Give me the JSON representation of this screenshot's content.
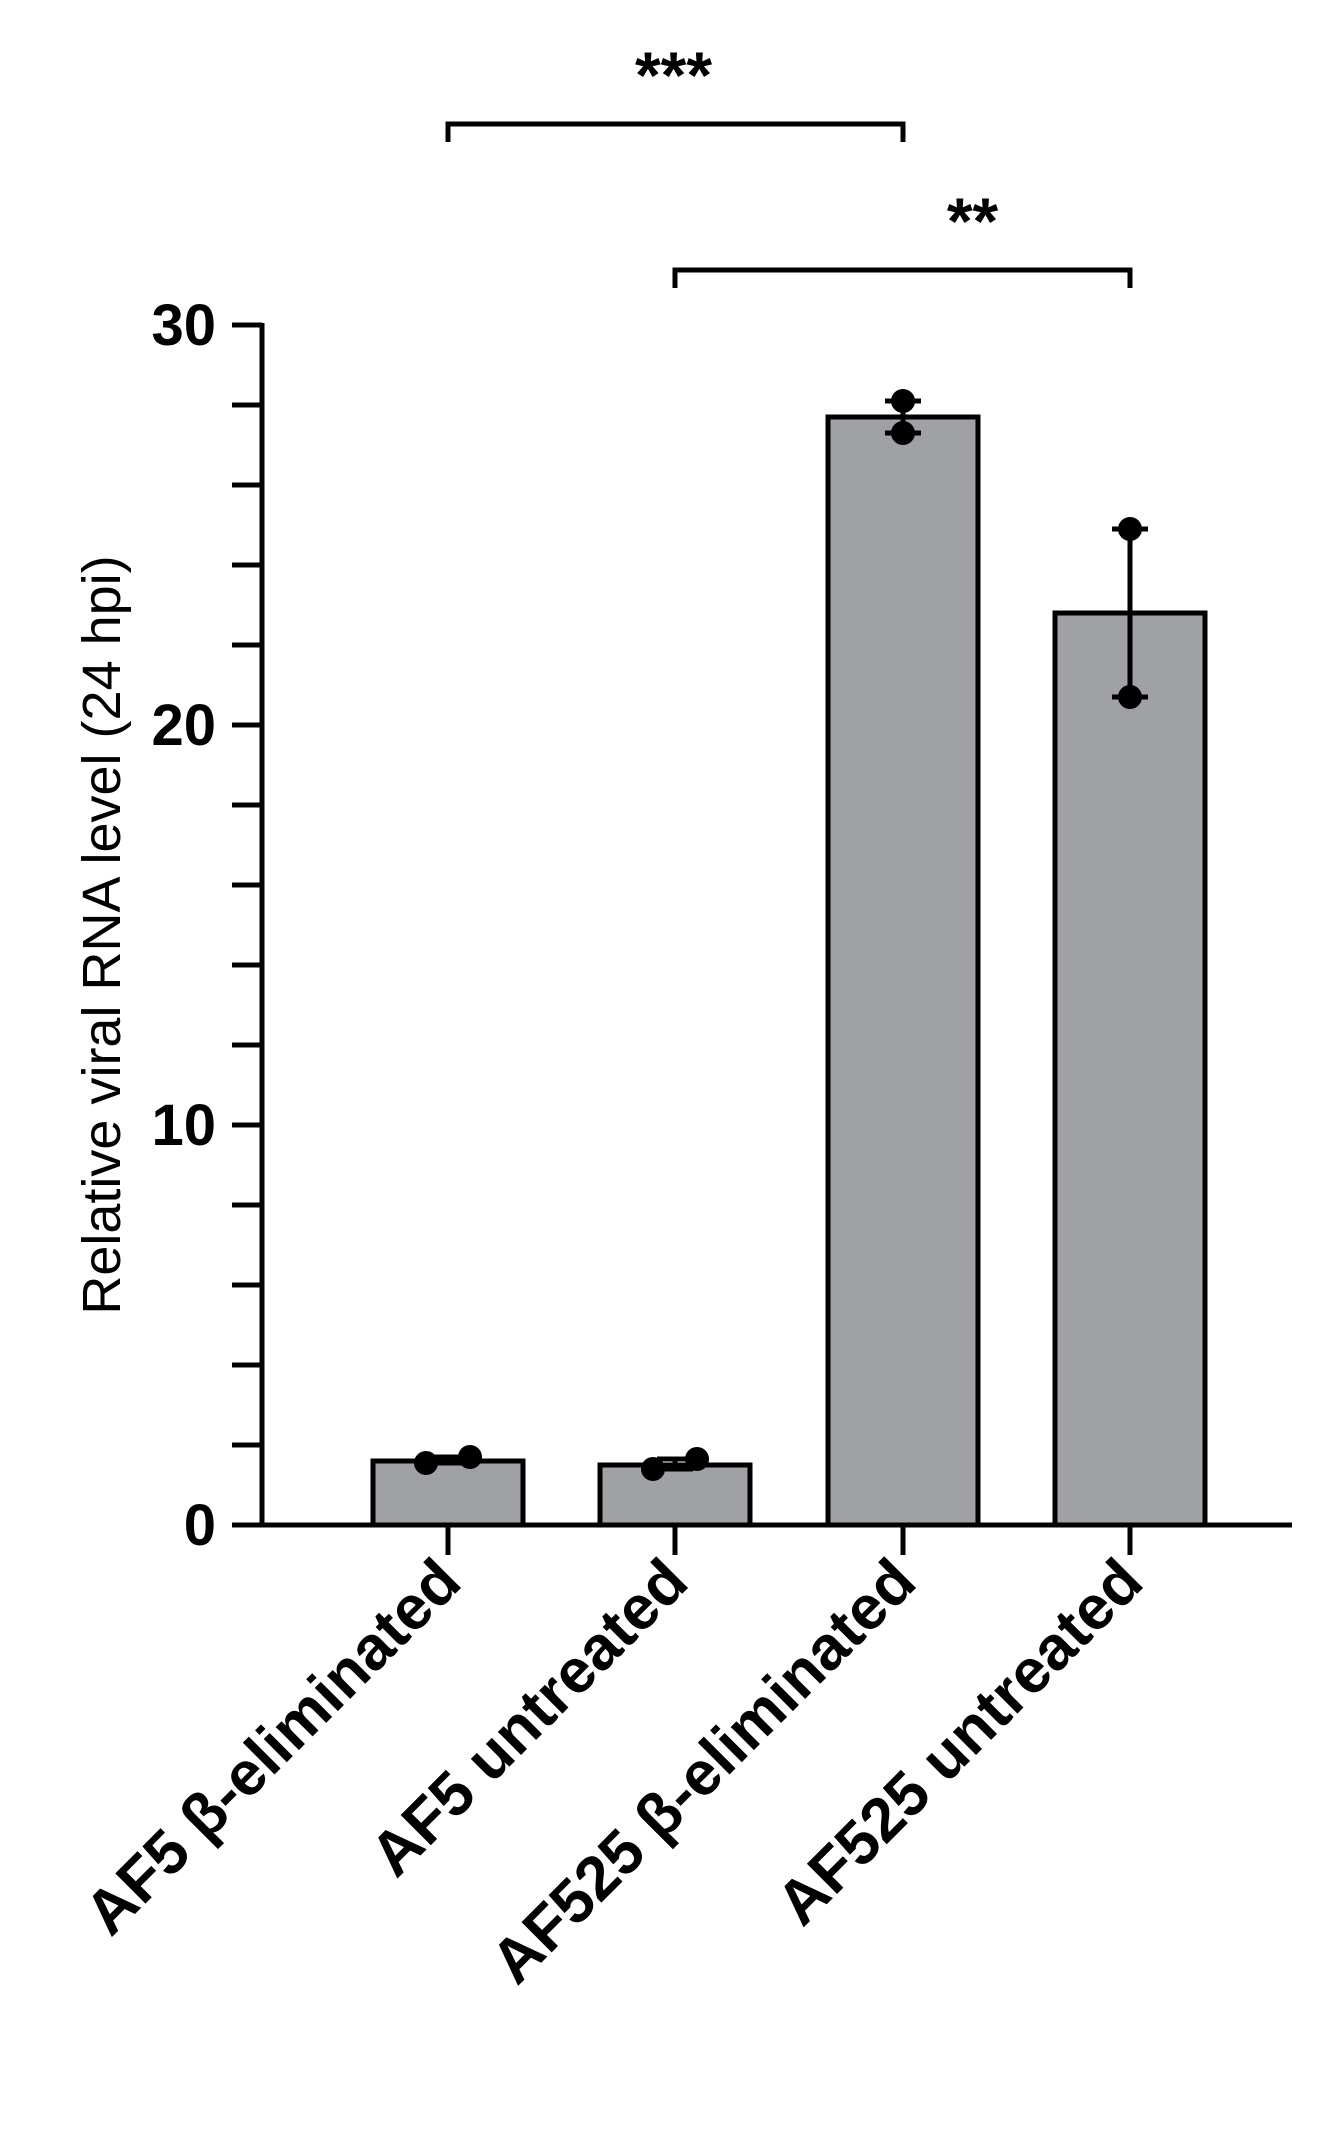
{
  "chart_data": {
    "type": "bar",
    "title": "",
    "xlabel": "",
    "ylabel": "Relative viral RNA level (24 hpi)",
    "ylim": [
      0,
      30
    ],
    "yticks": [
      0,
      10,
      20,
      30
    ],
    "minor_ticks_per_major": 5,
    "grid": false,
    "categories": [
      "AF5 β-eliminated",
      "AF5 untreated",
      "AF525 β-eliminated",
      "AF525 untreated"
    ],
    "values": [
      1.6,
      1.5,
      27.7,
      22.8
    ],
    "points": [
      [
        1.55,
        1.7
      ],
      [
        1.4,
        1.65
      ],
      [
        27.3,
        28.1
      ],
      [
        20.7,
        24.9
      ]
    ],
    "error_bars": [
      [
        1.55,
        1.7
      ],
      [
        1.4,
        1.65
      ],
      [
        27.3,
        28.1
      ],
      [
        20.7,
        24.9
      ]
    ],
    "bar_color": "#a0a1a4",
    "edge_color": "#000000",
    "significance": [
      {
        "from": 0,
        "to": 2,
        "label": "***"
      },
      {
        "from": 1,
        "to": 3,
        "label": "**"
      }
    ]
  }
}
